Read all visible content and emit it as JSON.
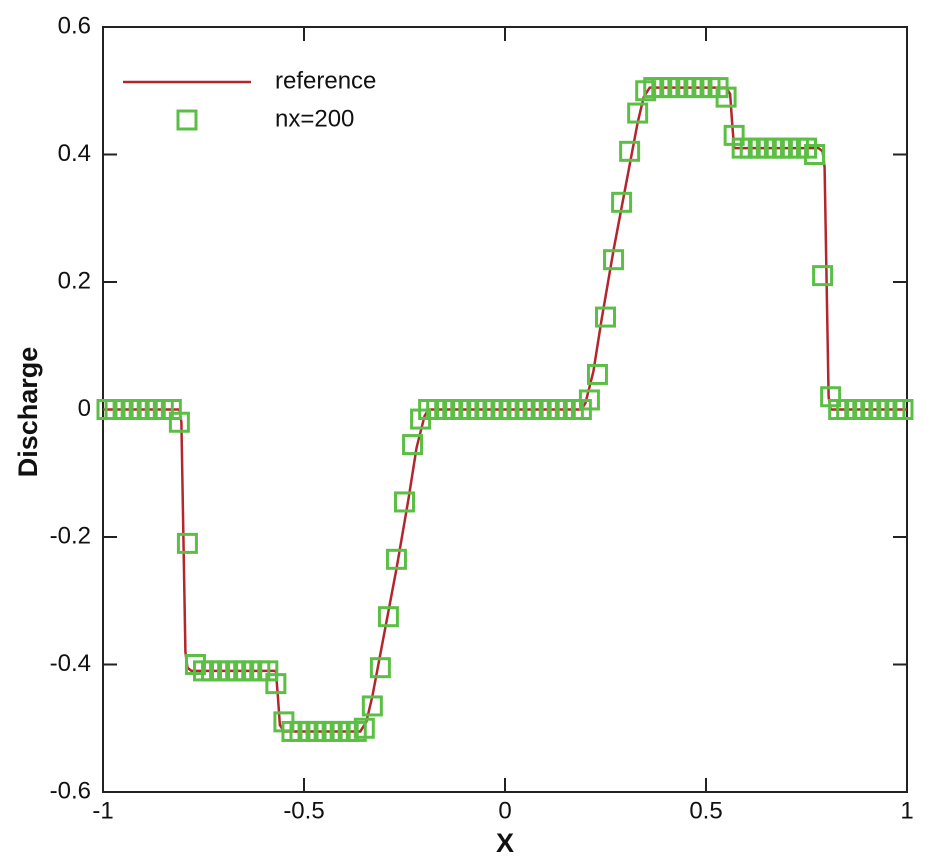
{
  "chart_data": {
    "type": "line",
    "x_label": "X",
    "y_label": "Discharge",
    "xlim": [
      -1,
      1
    ],
    "xticks": [
      -1,
      -0.5,
      0,
      0.5,
      1
    ],
    "ylim": [
      -0.6,
      0.6
    ],
    "yticks": [
      -0.6,
      -0.4,
      -0.2,
      0,
      0.2,
      0.4,
      0.6
    ],
    "legend": "upper-left",
    "series": [
      {
        "name": "reference",
        "style": "line",
        "color": "#b3262e",
        "x": [
          -1,
          -0.81,
          -0.805,
          -0.8,
          -0.795,
          -0.79,
          -0.78,
          -0.57,
          -0.565,
          -0.56,
          -0.55,
          -0.36,
          -0.345,
          -0.33,
          -0.3,
          -0.27,
          -0.24,
          -0.22,
          -0.2,
          -0.19,
          0.19,
          0.2,
          0.22,
          0.24,
          0.27,
          0.3,
          0.33,
          0.345,
          0.36,
          0.55,
          0.56,
          0.565,
          0.57,
          0.78,
          0.79,
          0.795,
          0.8,
          0.805,
          0.81,
          1
        ],
        "values": [
          0,
          0,
          -0.02,
          -0.2,
          -0.38,
          -0.405,
          -0.41,
          -0.41,
          -0.45,
          -0.495,
          -0.505,
          -0.505,
          -0.49,
          -0.45,
          -0.35,
          -0.25,
          -0.14,
          -0.06,
          -0.01,
          0,
          0,
          0.01,
          0.06,
          0.14,
          0.25,
          0.35,
          0.45,
          0.49,
          0.505,
          0.505,
          0.495,
          0.45,
          0.41,
          0.41,
          0.405,
          0.38,
          0.2,
          0.02,
          0,
          0
        ]
      },
      {
        "name": "nx=200",
        "style": "square",
        "color": "#5cbf45",
        "x": [
          -0.99,
          -0.97,
          -0.95,
          -0.93,
          -0.91,
          -0.89,
          -0.87,
          -0.85,
          -0.83,
          -0.81,
          -0.79,
          -0.77,
          -0.75,
          -0.73,
          -0.71,
          -0.69,
          -0.67,
          -0.65,
          -0.63,
          -0.61,
          -0.59,
          -0.57,
          -0.55,
          -0.53,
          -0.51,
          -0.49,
          -0.47,
          -0.45,
          -0.43,
          -0.41,
          -0.39,
          -0.37,
          -0.35,
          -0.33,
          -0.31,
          -0.29,
          -0.27,
          -0.25,
          -0.23,
          -0.21,
          -0.19,
          -0.17,
          -0.15,
          -0.13,
          -0.11,
          -0.09,
          -0.07,
          -0.05,
          -0.03,
          -0.01,
          0.01,
          0.03,
          0.05,
          0.07,
          0.09,
          0.11,
          0.13,
          0.15,
          0.17,
          0.19,
          0.21,
          0.23,
          0.25,
          0.27,
          0.29,
          0.31,
          0.33,
          0.35,
          0.37,
          0.39,
          0.41,
          0.43,
          0.45,
          0.47,
          0.49,
          0.51,
          0.53,
          0.55,
          0.57,
          0.59,
          0.61,
          0.63,
          0.65,
          0.67,
          0.69,
          0.71,
          0.73,
          0.75,
          0.77,
          0.79,
          0.81,
          0.83,
          0.85,
          0.87,
          0.89,
          0.91,
          0.93,
          0.95,
          0.97,
          0.99
        ],
        "values": [
          0,
          0,
          0,
          0,
          0,
          0,
          0,
          0,
          0,
          -0.02,
          -0.21,
          -0.4,
          -0.41,
          -0.41,
          -0.41,
          -0.41,
          -0.41,
          -0.41,
          -0.41,
          -0.41,
          -0.41,
          -0.43,
          -0.49,
          -0.505,
          -0.505,
          -0.505,
          -0.505,
          -0.505,
          -0.505,
          -0.505,
          -0.505,
          -0.505,
          -0.5,
          -0.465,
          -0.405,
          -0.325,
          -0.235,
          -0.145,
          -0.055,
          -0.015,
          0,
          0,
          0,
          0,
          0,
          0,
          0,
          0,
          0,
          0,
          0,
          0,
          0,
          0,
          0,
          0,
          0,
          0,
          0,
          0,
          0.015,
          0.055,
          0.145,
          0.235,
          0.325,
          0.405,
          0.465,
          0.5,
          0.505,
          0.505,
          0.505,
          0.505,
          0.505,
          0.505,
          0.505,
          0.505,
          0.505,
          0.49,
          0.43,
          0.41,
          0.41,
          0.41,
          0.41,
          0.41,
          0.41,
          0.41,
          0.41,
          0.41,
          0.4,
          0.21,
          0.02,
          0,
          0,
          0,
          0,
          0,
          0,
          0,
          0,
          0
        ]
      }
    ]
  }
}
